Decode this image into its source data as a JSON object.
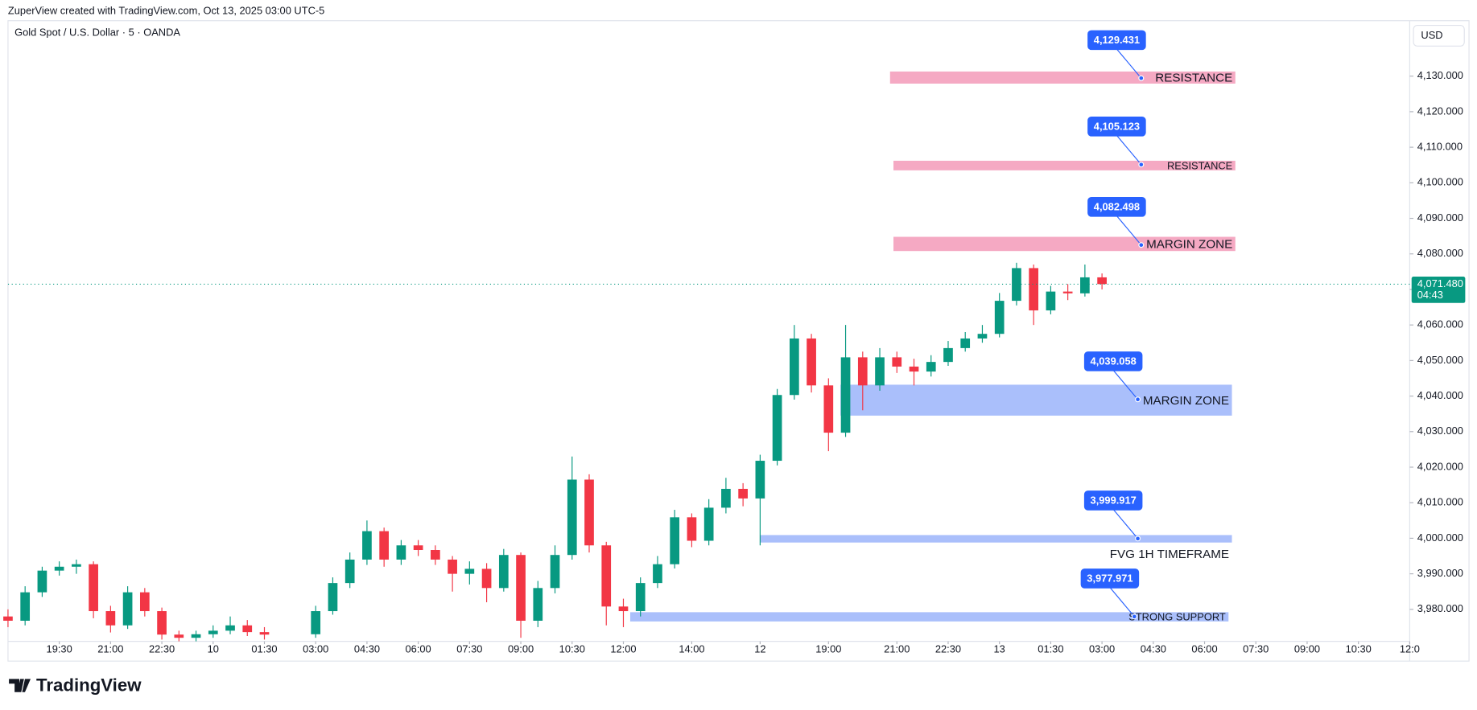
{
  "header": {
    "caption": "ZuperView created with TradingView.com, Oct 13, 2025 03:00 UTC-5",
    "logo": "TradingView"
  },
  "chart_data": {
    "type": "candlestick",
    "title": "Gold Spot / U.S. Dollar · 5 · OANDA",
    "currency": "USD",
    "up_color": "#089981",
    "down_color": "#f23645",
    "xlim": [
      0,
      41
    ],
    "ylim": [
      3971,
      4145.6
    ],
    "xticks": [
      {
        "value": 1.5,
        "label": "19:30"
      },
      {
        "value": 3,
        "label": "21:00"
      },
      {
        "value": 4.5,
        "label": "22:30"
      },
      {
        "value": 6,
        "label": "10"
      },
      {
        "value": 7.5,
        "label": "01:30"
      },
      {
        "value": 9,
        "label": "03:00"
      },
      {
        "value": 10.5,
        "label": "04:30"
      },
      {
        "value": 12,
        "label": "06:00"
      },
      {
        "value": 13.5,
        "label": "07:30"
      },
      {
        "value": 15,
        "label": "09:00"
      },
      {
        "value": 16.5,
        "label": "10:30"
      },
      {
        "value": 18,
        "label": "12:00"
      },
      {
        "value": 20,
        "label": "14:00"
      },
      {
        "value": 22,
        "label": "12"
      },
      {
        "value": 24,
        "label": "19:00"
      },
      {
        "value": 26,
        "label": "21:00"
      },
      {
        "value": 27.5,
        "label": "22:30"
      },
      {
        "value": 29,
        "label": "13"
      },
      {
        "value": 30.5,
        "label": "01:30"
      },
      {
        "value": 32,
        "label": "03:00"
      },
      {
        "value": 33.5,
        "label": "04:30"
      },
      {
        "value": 35,
        "label": "06:00"
      },
      {
        "value": 36.5,
        "label": "07:30"
      },
      {
        "value": 38,
        "label": "09:00"
      },
      {
        "value": 39.5,
        "label": "10:30"
      },
      {
        "value": 41,
        "label": "12:0"
      }
    ],
    "yticks": [
      {
        "value": 3980,
        "label": "3,980.000"
      },
      {
        "value": 3990,
        "label": "3,990.000"
      },
      {
        "value": 4000,
        "label": "4,000.000"
      },
      {
        "value": 4010,
        "label": "4,010.000"
      },
      {
        "value": 4020,
        "label": "4,020.000"
      },
      {
        "value": 4030,
        "label": "4,030.000"
      },
      {
        "value": 4040,
        "label": "4,040.000"
      },
      {
        "value": 4050,
        "label": "4,050.000"
      },
      {
        "value": 4060,
        "label": "4,060.000"
      },
      {
        "value": 4070,
        "label": "4,070.000"
      },
      {
        "value": 4080,
        "label": "4,080.000"
      },
      {
        "value": 4090,
        "label": "4,090.000"
      },
      {
        "value": 4100,
        "label": "4,100.000"
      },
      {
        "value": 4110,
        "label": "4,110.000"
      },
      {
        "value": 4120,
        "label": "4,120.000"
      },
      {
        "value": 4130,
        "label": "4,130.000"
      }
    ],
    "x": [
      0,
      0.5,
      1,
      1.5,
      2,
      2.5,
      3,
      3.5,
      4,
      4.5,
      5,
      5.5,
      6,
      6.5,
      7,
      7.5,
      9,
      9.5,
      10,
      10.5,
      11,
      11.5,
      12,
      12.5,
      13,
      13.5,
      14,
      14.5,
      15,
      15.5,
      16,
      16.5,
      17,
      17.5,
      18,
      18.5,
      19,
      19.5,
      20,
      20.5,
      21,
      21.5,
      22,
      22.5,
      23,
      23.5,
      24,
      24.5,
      25,
      25.5,
      26,
      26.5,
      27,
      27.5,
      28,
      28.5,
      29,
      29.5,
      30,
      30.5,
      31,
      31.5,
      32
    ],
    "open": [
      3978,
      3976.8,
      3984.8,
      3990.9,
      3992,
      3992.7,
      3979.5,
      3975.5,
      3984.8,
      3979.5,
      3972.9,
      3972,
      3973,
      3974,
      3975.5,
      3973.6,
      3973,
      3979.5,
      3987.4,
      3994,
      4002,
      3994,
      3998,
      3996.7,
      3994,
      3990,
      3991.4,
      3986,
      3995.3,
      3976.8,
      3986,
      3995.3,
      4016.5,
      3998,
      3980.8,
      3979.5,
      3987.4,
      3992.7,
      4005.9,
      3999.3,
      4008.6,
      4013.9,
      4011.2,
      4021.8,
      4040.3,
      4056.2,
      4043,
      4029.7,
      4050.9,
      4043,
      4050.9,
      4048.3,
      4046.9,
      4049.6,
      4053.5,
      4056.2,
      4057.5,
      4066.8,
      4076,
      4064.1,
      4069.4,
      4068.9,
      4073.4
    ],
    "high": [
      3980,
      3986.5,
      3992,
      3993.5,
      3994,
      3993.5,
      3981,
      3986.5,
      3986,
      3980.5,
      3974,
      3974,
      3975.5,
      3978,
      3977,
      3975,
      3981,
      3989,
      3996,
      4005,
      4003,
      3999.5,
      3999.5,
      3998,
      3995,
      3993.5,
      3993,
      3997,
      3996,
      3988,
      3998,
      4023,
      4018,
      3999,
      3983,
      3989,
      3995,
      4008,
      4007,
      4011,
      4017,
      4015.5,
      4023.5,
      4042,
      4060,
      4057.5,
      4045,
      4060,
      4052.5,
      4053.5,
      4052.5,
      4050.5,
      4051.5,
      4055.5,
      4058,
      4060,
      4069,
      4077.5,
      4077,
      4071,
      4071.5,
      4077,
      4074.5
    ],
    "low": [
      3975,
      3975.5,
      3983.5,
      3989.5,
      3990,
      3977.5,
      3973.5,
      3974.5,
      3978,
      3971.5,
      3971,
      3971,
      3972,
      3973,
      3972.5,
      3971.5,
      3972,
      3978.5,
      3986,
      3992.5,
      3992,
      3992.5,
      3995,
      3992.5,
      3985,
      3987,
      3982,
      3985,
      3972,
      3975,
      3984.5,
      3994,
      3996,
      3975.5,
      3975,
      3978,
      3986,
      3991.5,
      3997.5,
      3998,
      4007,
      4009,
      3998,
      4020.5,
      4039,
      4041,
      4024.5,
      4028.5,
      4036,
      4041.5,
      4046.5,
      4043,
      4045.5,
      4048.5,
      4052.5,
      4055,
      4056.5,
      4065.5,
      4060,
      4063,
      4067,
      4068,
      4070
    ],
    "close": [
      3976.8,
      3984.8,
      3990.9,
      3992,
      3992.7,
      3979.5,
      3975.5,
      3984.8,
      3979.5,
      3972.9,
      3972,
      3973,
      3974,
      3975.5,
      3973.6,
      3972.9,
      3979.5,
      3987.4,
      3994,
      4002,
      3994,
      3998,
      3996.7,
      3994,
      3990,
      3991.4,
      3986,
      3995.3,
      3976.8,
      3986,
      3995.3,
      4016.5,
      3998,
      3980.8,
      3979.5,
      3987.4,
      3992.7,
      4005.9,
      3999.3,
      4008.6,
      4013.9,
      4011.2,
      4021.8,
      4040.3,
      4056.2,
      4043,
      4029.7,
      4050.9,
      4043,
      4050.9,
      4048.3,
      4046.9,
      4049.6,
      4053.5,
      4056.2,
      4057.5,
      4066.8,
      4076,
      4064.1,
      4069.4,
      4068.9,
      4073.4,
      4071.5
    ],
    "last_price": {
      "value": 4071.48,
      "label": "4,071.480"
    },
    "countdown": "04:43",
    "zones": [
      {
        "label": "RESISTANCE",
        "color": "#f5a9c3",
        "t0": 25.8,
        "t1": 35.9,
        "top": 4131.3,
        "bottom": 4127.9,
        "tag": {
          "value": 4129.431,
          "label": "4,129.431"
        }
      },
      {
        "label": "RESISTANCE",
        "color": "#f5a9c3",
        "t0": 25.9,
        "t1": 35.9,
        "top": 4106.2,
        "bottom": 4103.5,
        "tag": {
          "value": 4105.123,
          "label": "4,105.123"
        }
      },
      {
        "label": "MARGIN ZONE",
        "color": "#f5a9c3",
        "t0": 25.9,
        "t1": 35.9,
        "top": 4084.8,
        "bottom": 4080.8,
        "tag": {
          "value": 4082.498,
          "label": "4,082.498"
        }
      },
      {
        "label": "MARGIN ZONE",
        "color": "#aabffb",
        "t0": 24.35,
        "t1": 35.8,
        "top": 4043.2,
        "bottom": 4034.5,
        "tag": {
          "value": 4039.058,
          "label": "4,039.058"
        }
      },
      {
        "label": "FVG 1H TIMEFRAME",
        "color": "#aabffb",
        "t0": 22,
        "t1": 35.8,
        "top": 4000.9,
        "bottom": 3998.8,
        "tag": {
          "value": 3999.917,
          "label": "3,999.917"
        }
      },
      {
        "label": "STRONG SUPPORT",
        "color": "#aabffb",
        "t0": 18.2,
        "t1": 35.7,
        "top": 3979.2,
        "bottom": 3976.6,
        "tag": {
          "value": 3977.971,
          "label": "3,977.971"
        }
      }
    ]
  }
}
